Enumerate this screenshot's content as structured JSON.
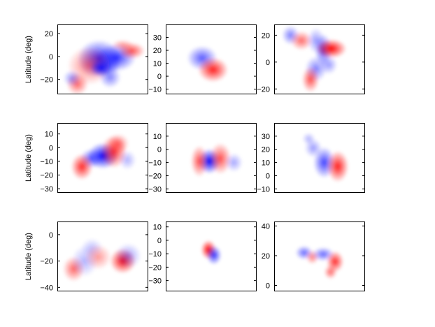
{
  "chart_data": [
    {
      "type": "heatmap",
      "ylabel": "Latitude (deg)",
      "ylim": [
        -33,
        28
      ],
      "yticks": [
        20,
        0,
        -20
      ],
      "blobs": [
        {
          "x": 0.65,
          "y": -1,
          "sx": 0.09,
          "sy": 5,
          "v": 0.8
        },
        {
          "x": 0.46,
          "y": -2,
          "sx": 0.1,
          "sy": 7,
          "v": 0.85
        },
        {
          "x": 0.35,
          "y": -8,
          "sx": 0.1,
          "sy": 7,
          "v": -0.5
        },
        {
          "x": 0.48,
          "y": -10,
          "sx": 0.05,
          "sy": 3,
          "v": 0.9
        },
        {
          "x": 0.58,
          "y": -7,
          "sx": 0.05,
          "sy": 4,
          "v": 0.35
        },
        {
          "x": 0.58,
          "y": -18,
          "sx": 0.05,
          "sy": 4,
          "v": 0.5
        },
        {
          "x": 0.22,
          "y": -24,
          "sx": 0.05,
          "sy": 4,
          "v": -0.6
        },
        {
          "x": 0.16,
          "y": -19,
          "sx": 0.04,
          "sy": 3,
          "v": 0.4
        },
        {
          "x": 0.82,
          "y": 5,
          "sx": 0.06,
          "sy": 3,
          "v": -0.7
        },
        {
          "x": 0.72,
          "y": 10,
          "sx": 0.05,
          "sy": 2,
          "v": -0.4
        }
      ]
    },
    {
      "type": "heatmap",
      "ylabel": "",
      "ylim": [
        -14,
        40
      ],
      "yticks": [
        30,
        20,
        10,
        0,
        -10
      ],
      "blobs": [
        {
          "x": 0.4,
          "y": 14,
          "sx": 0.07,
          "sy": 4,
          "v": 0.65
        },
        {
          "x": 0.52,
          "y": 5,
          "sx": 0.07,
          "sy": 4,
          "v": -0.9
        }
      ]
    },
    {
      "type": "heatmap",
      "ylabel": "",
      "ylim": [
        -24,
        28
      ],
      "yticks": [
        20,
        0,
        -20
      ],
      "blobs": [
        {
          "x": 0.18,
          "y": 20,
          "sx": 0.04,
          "sy": 3,
          "v": 0.5
        },
        {
          "x": 0.3,
          "y": 16,
          "sx": 0.05,
          "sy": 3,
          "v": -0.6
        },
        {
          "x": 0.46,
          "y": 16,
          "sx": 0.04,
          "sy": 4,
          "v": 0.4
        },
        {
          "x": 0.54,
          "y": 9,
          "sx": 0.04,
          "sy": 5,
          "v": 0.7
        },
        {
          "x": 0.63,
          "y": 10,
          "sx": 0.07,
          "sy": 3,
          "v": -1.0
        },
        {
          "x": 0.46,
          "y": -5,
          "sx": 0.05,
          "sy": 4,
          "v": 0.5
        },
        {
          "x": 0.6,
          "y": -2,
          "sx": 0.04,
          "sy": 3,
          "v": 0.4
        },
        {
          "x": 0.4,
          "y": -13,
          "sx": 0.04,
          "sy": 4,
          "v": -0.7
        }
      ]
    },
    {
      "type": "heatmap",
      "ylabel": "Latitude (deg)",
      "ylim": [
        -33,
        18
      ],
      "yticks": [
        10,
        0,
        -10,
        -20,
        -30
      ],
      "blobs": [
        {
          "x": 0.5,
          "y": -6,
          "sx": 0.07,
          "sy": 4,
          "v": 1.0
        },
        {
          "x": 0.37,
          "y": -8,
          "sx": 0.05,
          "sy": 3,
          "v": 0.6
        },
        {
          "x": 0.27,
          "y": -14,
          "sx": 0.05,
          "sy": 4,
          "v": -0.85
        },
        {
          "x": 0.62,
          "y": -3,
          "sx": 0.06,
          "sy": 5,
          "v": -0.8
        },
        {
          "x": 0.67,
          "y": 3,
          "sx": 0.05,
          "sy": 3,
          "v": -0.5
        },
        {
          "x": 0.77,
          "y": -9,
          "sx": 0.04,
          "sy": 3,
          "v": 0.3
        }
      ]
    },
    {
      "type": "heatmap",
      "ylabel": "",
      "ylim": [
        -33,
        20
      ],
      "yticks": [
        10,
        0,
        -10,
        -20,
        -30
      ],
      "blobs": [
        {
          "x": 0.48,
          "y": -9,
          "sx": 0.05,
          "sy": 4,
          "v": 1.0
        },
        {
          "x": 0.37,
          "y": -9,
          "sx": 0.04,
          "sy": 5,
          "v": -0.7
        },
        {
          "x": 0.6,
          "y": -7,
          "sx": 0.05,
          "sy": 5,
          "v": -0.7
        },
        {
          "x": 0.75,
          "y": -10,
          "sx": 0.04,
          "sy": 3,
          "v": 0.35
        }
      ]
    },
    {
      "type": "heatmap",
      "ylabel": "",
      "ylim": [
        -13,
        40
      ],
      "yticks": [
        30,
        20,
        10,
        0,
        -10
      ],
      "blobs": [
        {
          "x": 0.55,
          "y": 10,
          "sx": 0.05,
          "sy": 5,
          "v": 0.75
        },
        {
          "x": 0.7,
          "y": 7,
          "sx": 0.05,
          "sy": 5,
          "v": -0.9
        },
        {
          "x": 0.43,
          "y": 21,
          "sx": 0.04,
          "sy": 3,
          "v": 0.4
        },
        {
          "x": 0.38,
          "y": 28,
          "sx": 0.03,
          "sy": 2,
          "v": 0.3
        }
      ]
    },
    {
      "type": "heatmap",
      "ylabel": "Latitude (deg)",
      "ylim": [
        -43,
        10
      ],
      "yticks": [
        0,
        -20,
        -40
      ],
      "blobs": [
        {
          "x": 0.72,
          "y": -20,
          "sx": 0.06,
          "sy": 4,
          "v": -0.95
        },
        {
          "x": 0.78,
          "y": -16,
          "sx": 0.06,
          "sy": 4,
          "v": 0.35
        },
        {
          "x": 0.18,
          "y": -26,
          "sx": 0.05,
          "sy": 4,
          "v": -0.6
        },
        {
          "x": 0.3,
          "y": -20,
          "sx": 0.06,
          "sy": 5,
          "v": 0.3
        },
        {
          "x": 0.38,
          "y": -10,
          "sx": 0.05,
          "sy": 3,
          "v": 0.25
        },
        {
          "x": 0.45,
          "y": -17,
          "sx": 0.06,
          "sy": 4,
          "v": -0.4
        }
      ]
    },
    {
      "type": "heatmap",
      "ylabel": "",
      "ylim": [
        -38,
        14
      ],
      "yticks": [
        10,
        0,
        -10,
        -20,
        -30
      ],
      "blobs": [
        {
          "x": 0.47,
          "y": -7,
          "sx": 0.035,
          "sy": 3,
          "v": -1.0
        },
        {
          "x": 0.53,
          "y": -11,
          "sx": 0.035,
          "sy": 3,
          "v": 0.8
        }
      ]
    },
    {
      "type": "heatmap",
      "ylabel": "",
      "ylim": [
        -4,
        43
      ],
      "yticks": [
        40,
        20,
        0
      ],
      "blobs": [
        {
          "x": 0.33,
          "y": 22,
          "sx": 0.04,
          "sy": 2,
          "v": 0.6
        },
        {
          "x": 0.42,
          "y": 19,
          "sx": 0.03,
          "sy": 2,
          "v": -0.5
        },
        {
          "x": 0.54,
          "y": 21,
          "sx": 0.05,
          "sy": 2,
          "v": 0.6
        },
        {
          "x": 0.67,
          "y": 16,
          "sx": 0.04,
          "sy": 3,
          "v": -0.85
        },
        {
          "x": 0.62,
          "y": 9,
          "sx": 0.03,
          "sy": 2,
          "v": -0.6
        }
      ]
    }
  ]
}
